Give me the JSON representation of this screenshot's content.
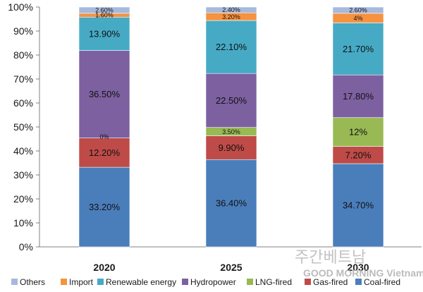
{
  "chart_data": {
    "type": "bar",
    "stacked": true,
    "categories": [
      "2020",
      "2025",
      "2030"
    ],
    "ylim": [
      0,
      100
    ],
    "yticks": [
      "0%",
      "10%",
      "20%",
      "30%",
      "40%",
      "50%",
      "60%",
      "70%",
      "80%",
      "90%",
      "100%"
    ],
    "grid": false,
    "legend": "bottom",
    "series": [
      {
        "name": "Coal-fired",
        "color": "#4a7ebb",
        "values": [
          33.2,
          36.4,
          34.7
        ],
        "labels": [
          "33.20%",
          "36.40%",
          "34.70%"
        ]
      },
      {
        "name": "Gas-fired",
        "color": "#be4b48",
        "values": [
          12.2,
          9.9,
          7.2
        ],
        "labels": [
          "12.20%",
          "9.90%",
          "7.20%"
        ]
      },
      {
        "name": "LNG-fired",
        "color": "#98b954",
        "values": [
          0,
          3.5,
          12
        ],
        "labels": [
          "0%",
          "3.50%",
          "12%"
        ]
      },
      {
        "name": "Hydropower",
        "color": "#7d60a0",
        "values": [
          36.5,
          22.5,
          17.8
        ],
        "labels": [
          "36.50%",
          "22.50%",
          "17.80%"
        ]
      },
      {
        "name": "Renewable energy",
        "color": "#46aac5",
        "values": [
          13.9,
          22.1,
          21.7
        ],
        "labels": [
          "13.90%",
          "22.10%",
          "21.70%"
        ]
      },
      {
        "name": "Import",
        "color": "#f69240",
        "values": [
          1.6,
          3.2,
          4
        ],
        "labels": [
          "1.60%",
          "3.20%",
          "4%"
        ]
      },
      {
        "name": "Others",
        "color": "#a6b9de",
        "values": [
          2.6,
          2.4,
          2.6
        ],
        "labels": [
          "2.60%",
          "2.40%",
          "2.60%"
        ]
      }
    ],
    "legend_order": [
      "Others",
      "Import",
      "Renewable energy",
      "Hydropower",
      "LNG-fired",
      "Gas-fired",
      "Coal-fired"
    ]
  },
  "watermark": {
    "line1": "주간베트남",
    "line2": "GOOD MORNING Vietnam"
  }
}
